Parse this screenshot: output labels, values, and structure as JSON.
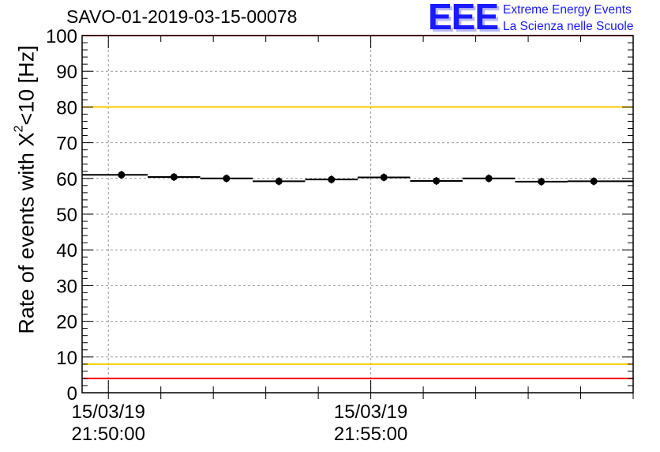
{
  "header": {
    "title": "SAVO-01-2019-03-15-00078",
    "logo_text": "EEE",
    "logo_line1": "Extreme Energy Events",
    "logo_line2": "La Scienza nelle Scuole"
  },
  "chart_data": {
    "type": "scatter",
    "title": "SAVO-01-2019-03-15-00078",
    "ylabel_prefix": "Rate of events with X",
    "ylabel_sup": "2",
    "ylabel_suffix": "<10 [Hz]",
    "ylim": [
      0,
      100
    ],
    "yticks": [
      "0",
      "10",
      "20",
      "30",
      "40",
      "50",
      "60",
      "70",
      "80",
      "90",
      "100"
    ],
    "xlim_seconds": [
      -30,
      600
    ],
    "xtick_labels": [
      {
        "date": "15/03/19",
        "time": "21:50:00",
        "t": 0
      },
      {
        "date": "15/03/19",
        "time": "21:55:00",
        "t": 300
      }
    ],
    "grid": true,
    "points": [
      {
        "t": 15,
        "y": 61.0,
        "x_from": -30,
        "x_to": 45
      },
      {
        "t": 75,
        "y": 60.4,
        "x_from": 45,
        "x_to": 105
      },
      {
        "t": 135,
        "y": 60.0,
        "x_from": 105,
        "x_to": 165
      },
      {
        "t": 195,
        "y": 59.2,
        "x_from": 165,
        "x_to": 225
      },
      {
        "t": 255,
        "y": 59.7,
        "x_from": 225,
        "x_to": 285
      },
      {
        "t": 315,
        "y": 60.3,
        "x_from": 285,
        "x_to": 345
      },
      {
        "t": 375,
        "y": 59.3,
        "x_from": 345,
        "x_to": 405
      },
      {
        "t": 435,
        "y": 60.0,
        "x_from": 405,
        "x_to": 465
      },
      {
        "t": 495,
        "y": 59.1,
        "x_from": 465,
        "x_to": 525
      },
      {
        "t": 555,
        "y": 59.2,
        "x_from": 525,
        "x_to": 600
      }
    ],
    "reference_lines": [
      {
        "y": 100,
        "color": "#ff0000"
      },
      {
        "y": 80,
        "color": "#ffcc00"
      },
      {
        "y": 8,
        "color": "#ffcc00"
      },
      {
        "y": 4,
        "color": "#ff0000"
      }
    ]
  }
}
